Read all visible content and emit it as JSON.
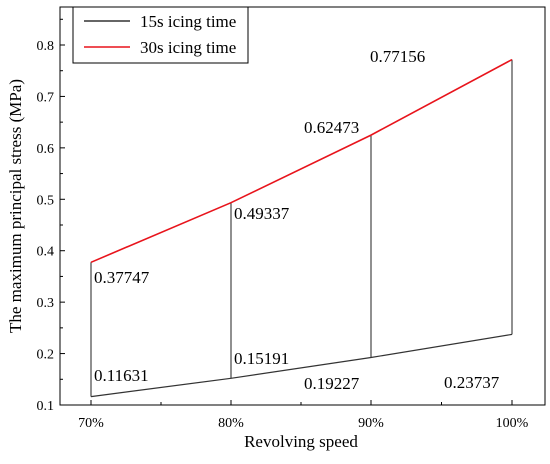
{
  "chart_data": {
    "type": "line",
    "xlabel": "Revolving speed",
    "ylabel": "The maximum principal stress (MPa)",
    "categories": [
      "70%",
      "80%",
      "90%",
      "100%"
    ],
    "ylim": [
      0.1,
      0.85
    ],
    "yticks": [
      0.1,
      0.2,
      0.3,
      0.4,
      0.5,
      0.6,
      0.7,
      0.8
    ],
    "legend_position": "top-left",
    "series": [
      {
        "name": "15s icing time",
        "color": "#333333",
        "values": [
          0.11631,
          0.15191,
          0.19227,
          0.23737
        ],
        "labels": [
          "0.11631",
          "0.15191",
          "0.19227",
          "0.23737"
        ]
      },
      {
        "name": "30s icing time",
        "color": "#e8141c",
        "values": [
          0.37747,
          0.49337,
          0.62473,
          0.77156
        ],
        "labels": [
          "0.37747",
          "0.49337",
          "0.62473",
          "0.77156"
        ]
      }
    ]
  }
}
